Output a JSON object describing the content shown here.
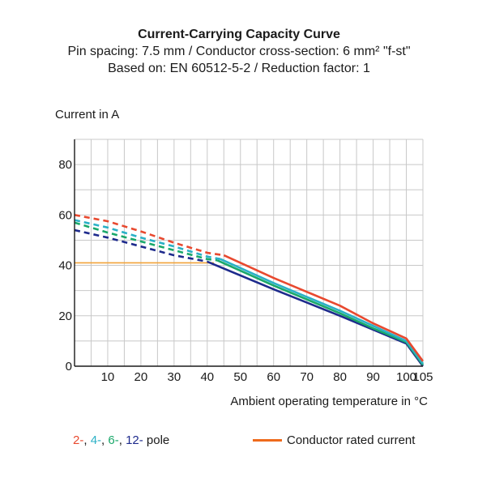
{
  "chart_data": {
    "type": "line",
    "title": "Current-Carrying Capacity Curve",
    "subtitle_lines": [
      "Pin spacing: 7.5 mm / Conductor cross-section: 6 mm² \"f-st\"",
      "Based on: EN 60512-5-2 / Reduction factor: 1"
    ],
    "ylabel": "Current in A",
    "xlabel": "Ambient operating temperature in °C",
    "xlim": [
      0,
      105
    ],
    "ylim": [
      0,
      90
    ],
    "xticks": [
      10,
      20,
      30,
      40,
      50,
      60,
      70,
      80,
      90,
      100,
      105
    ],
    "yticks": [
      0,
      20,
      40,
      60,
      80
    ],
    "grid": true,
    "series": [
      {
        "name": "2-",
        "color": "#e8492f",
        "dashed": [
          [
            0,
            60
          ],
          [
            10,
            57.5
          ],
          [
            20,
            53.5
          ],
          [
            30,
            49
          ],
          [
            40,
            45
          ],
          [
            45,
            44
          ]
        ],
        "solid": [
          [
            45,
            44
          ],
          [
            60,
            35
          ],
          [
            80,
            24
          ],
          [
            90,
            17
          ],
          [
            100,
            11
          ],
          [
            105,
            2
          ]
        ]
      },
      {
        "name": "4-",
        "color": "#2ab0c6",
        "dashed": [
          [
            0,
            58
          ],
          [
            10,
            55
          ],
          [
            20,
            51
          ],
          [
            30,
            47.5
          ],
          [
            40,
            43.5
          ],
          [
            44,
            42.5
          ]
        ],
        "solid": [
          [
            44,
            42.5
          ],
          [
            60,
            33
          ],
          [
            80,
            22
          ],
          [
            90,
            16
          ],
          [
            100,
            10
          ],
          [
            105,
            1
          ]
        ]
      },
      {
        "name": "6-",
        "color": "#1aa86a",
        "dashed": [
          [
            0,
            57
          ],
          [
            10,
            53
          ],
          [
            20,
            49.5
          ],
          [
            30,
            46
          ],
          [
            40,
            42.5
          ],
          [
            43,
            42
          ]
        ],
        "solid": [
          [
            43,
            42
          ],
          [
            60,
            32
          ],
          [
            80,
            21
          ],
          [
            90,
            15
          ],
          [
            100,
            9.5
          ],
          [
            105,
            0.5
          ]
        ]
      },
      {
        "name": "12-",
        "color": "#1d2a8c",
        "dashed": [
          [
            0,
            54
          ],
          [
            10,
            51
          ],
          [
            20,
            47.5
          ],
          [
            30,
            44
          ],
          [
            40,
            41.5
          ]
        ],
        "solid": [
          [
            40,
            41.5
          ],
          [
            60,
            30.5
          ],
          [
            80,
            20
          ],
          [
            90,
            14.5
          ],
          [
            100,
            9
          ],
          [
            105,
            0
          ]
        ]
      }
    ],
    "rated_current": {
      "name": "Conductor rated current",
      "color": "#f1a33a",
      "value": 41,
      "x_end": 42
    }
  },
  "legend": {
    "poles_suffix": " pole",
    "rated_label": "Conductor rated current",
    "rated_swatch_color": "#ee6a1c"
  }
}
